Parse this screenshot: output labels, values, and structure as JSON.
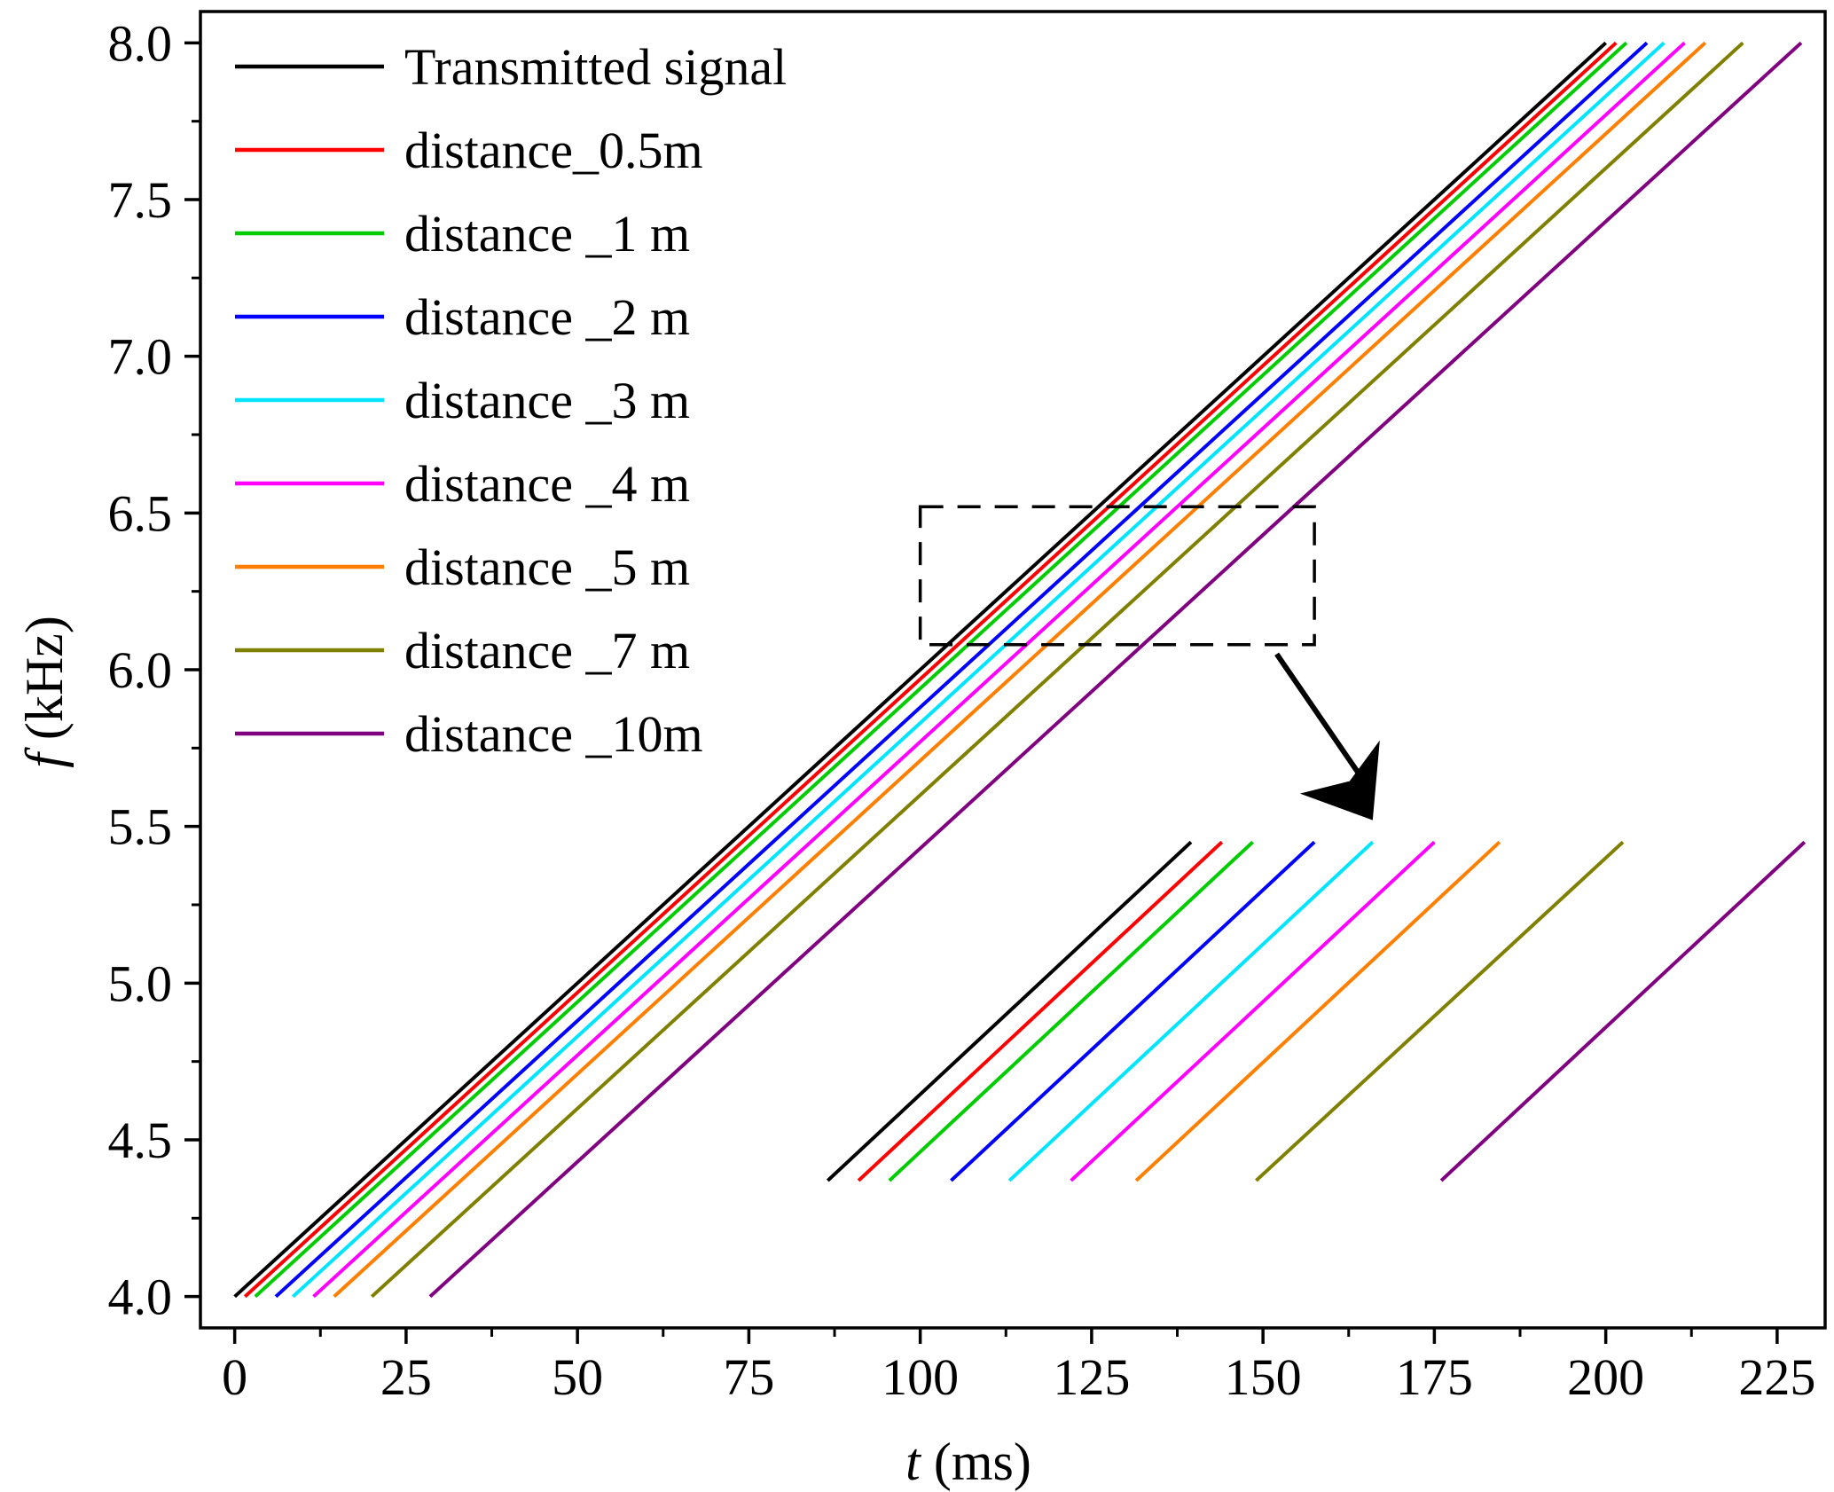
{
  "chart_data": {
    "type": "line",
    "title": "",
    "xlabel": {
      "var": "t",
      "unit": " (ms)"
    },
    "ylabel": {
      "var": "f",
      "unit": " (kHz)"
    },
    "xlim": [
      -5,
      232
    ],
    "ylim": [
      3.9,
      8.1
    ],
    "xticks": [
      "0",
      "25",
      "50",
      "75",
      "100",
      "125",
      "150",
      "175",
      "200",
      "225"
    ],
    "xtick_values": [
      0,
      25,
      50,
      75,
      100,
      125,
      150,
      175,
      200,
      225
    ],
    "yticks": [
      "4.0",
      "4.5",
      "5.0",
      "5.5",
      "6.0",
      "6.5",
      "7.0",
      "7.5",
      "8.0"
    ],
    "ytick_values": [
      4.0,
      4.5,
      5.0,
      5.5,
      6.0,
      6.5,
      7.0,
      7.5,
      8.0
    ],
    "legend_position": "top-left",
    "series": [
      {
        "name": "Transmitted signal",
        "color": "#000000",
        "x": [
          0,
          200
        ],
        "y": [
          4.0,
          8.0
        ]
      },
      {
        "name": "distance_0.5m",
        "color": "#ff0000",
        "x": [
          1.5,
          201.5
        ],
        "y": [
          4.0,
          8.0
        ]
      },
      {
        "name": "distance _1 m",
        "color": "#00cc00",
        "x": [
          3,
          203
        ],
        "y": [
          4.0,
          8.0
        ]
      },
      {
        "name": "distance _2 m",
        "color": "#0000ff",
        "x": [
          6,
          206
        ],
        "y": [
          4.0,
          8.0
        ]
      },
      {
        "name": "distance _3 m",
        "color": "#00e5ff",
        "x": [
          8.5,
          208.5
        ],
        "y": [
          4.0,
          8.0
        ]
      },
      {
        "name": "distance _4 m",
        "color": "#ff00ff",
        "x": [
          11.5,
          211.5
        ],
        "y": [
          4.0,
          8.0
        ]
      },
      {
        "name": "distance _5 m",
        "color": "#ff7f00",
        "x": [
          14.5,
          214.5
        ],
        "y": [
          4.0,
          8.0
        ]
      },
      {
        "name": "distance _7 m",
        "color": "#808000",
        "x": [
          20,
          220
        ],
        "y": [
          4.0,
          8.0
        ]
      },
      {
        "name": "distance _10m",
        "color": "#800080",
        "x": [
          28.5,
          228.5
        ],
        "y": [
          4.0,
          8.0
        ]
      }
    ],
    "zoom_region": {
      "x": [
        100,
        157.5
      ],
      "y": [
        6.08,
        6.52
      ]
    },
    "inset": {
      "x_range": [
        86.5,
        229
      ],
      "y_range": [
        4.37,
        5.45
      ],
      "series": [
        {
          "name": "Transmitted signal",
          "x": [
            86.5,
            139.5
          ]
        },
        {
          "name": "distance_0.5m",
          "x": [
            91,
            144
          ]
        },
        {
          "name": "distance _1 m",
          "x": [
            95.5,
            148.5
          ]
        },
        {
          "name": "distance _2 m",
          "x": [
            104.5,
            157.5
          ]
        },
        {
          "name": "distance _3 m",
          "x": [
            113,
            166
          ]
        },
        {
          "name": "distance _4 m",
          "x": [
            122,
            175
          ]
        },
        {
          "name": "distance _5 m",
          "x": [
            131.5,
            184.5
          ]
        },
        {
          "name": "distance _7 m",
          "x": [
            149,
            202.5
          ]
        },
        {
          "name": "distance _10m",
          "x": [
            176,
            229
          ]
        }
      ]
    },
    "arrow": {
      "from": [
        152,
        6.05
      ],
      "to": [
        166,
        5.52
      ]
    }
  }
}
